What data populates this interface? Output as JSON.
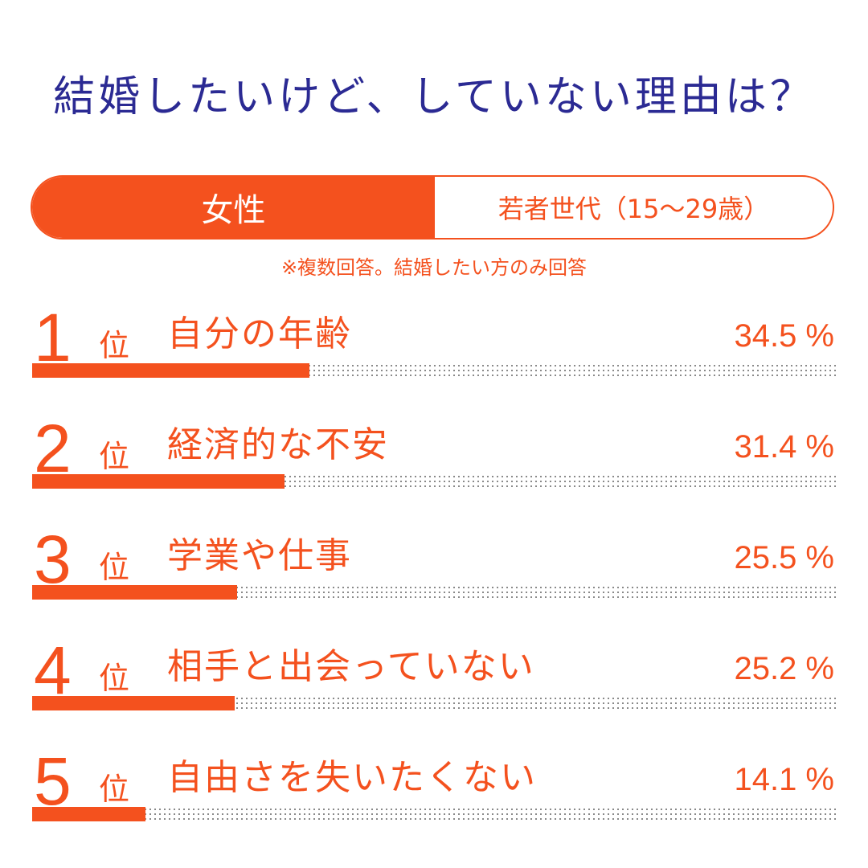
{
  "title": "結婚したいけど、していない理由は？",
  "pill": {
    "left": "女性",
    "right": "若者世代（15～29歳）"
  },
  "note": "※複数回答。結婚したい方のみ回答",
  "colors": {
    "accent": "#f4511e",
    "title": "#2b2a93"
  },
  "chart_data": {
    "type": "bar",
    "categories": [
      "自分の年齢",
      "経済的な不安",
      "学業や仕事",
      "相手と出会っていない",
      "自由さを失いたくない"
    ],
    "values": [
      34.5,
      31.4,
      25.5,
      25.2,
      14.1
    ],
    "ylim": [
      0,
      100
    ],
    "unit": "%",
    "rank_suffix": "位",
    "ranks": [
      "1",
      "2",
      "3",
      "4",
      "5"
    ],
    "value_labels": [
      "34.5 %",
      "31.4 %",
      "25.5 %",
      "25.2 %",
      "14.1 %"
    ]
  }
}
